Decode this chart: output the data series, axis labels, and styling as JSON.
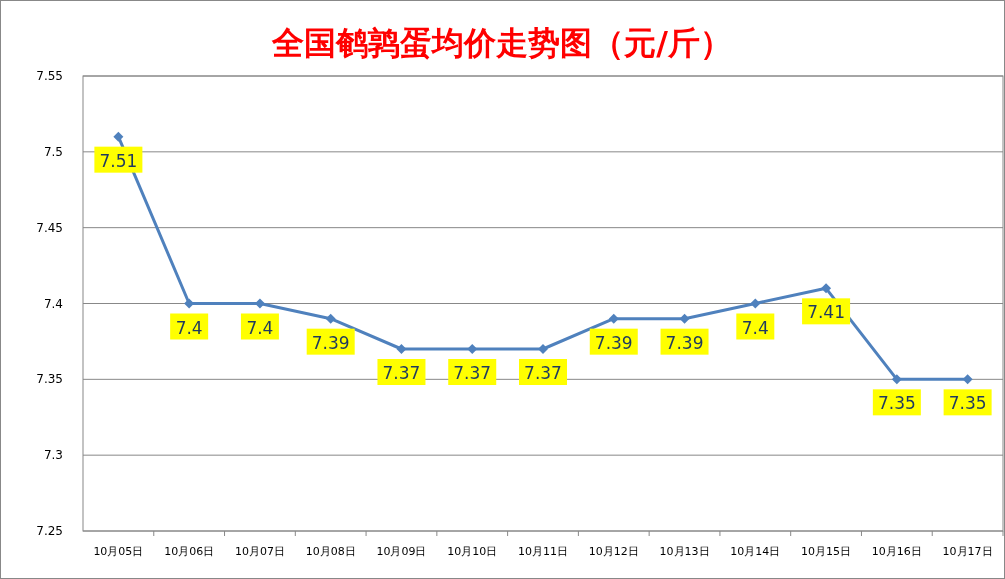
{
  "chart_data": {
    "type": "line",
    "title": "全国鹌鹑蛋均价走势图（元/斤）",
    "categories": [
      "10月05日",
      "10月06日",
      "10月07日",
      "10月08日",
      "10月09日",
      "10月10日",
      "10月11日",
      "10月12日",
      "10月13日",
      "10月14日",
      "10月15日",
      "10月16日",
      "10月17日"
    ],
    "series": [
      {
        "color": "#4f81bd",
        "values": [
          7.51,
          7.4,
          7.4,
          7.39,
          7.37,
          7.37,
          7.37,
          7.39,
          7.39,
          7.4,
          7.41,
          7.35,
          7.35
        ]
      }
    ],
    "ylim": [
      7.25,
      7.55
    ],
    "yticks": [
      7.25,
      7.3,
      7.35,
      7.4,
      7.45,
      7.5,
      7.55
    ],
    "grid": "y",
    "data_labels": true,
    "marker": "diamond",
    "line_style": "solid"
  }
}
